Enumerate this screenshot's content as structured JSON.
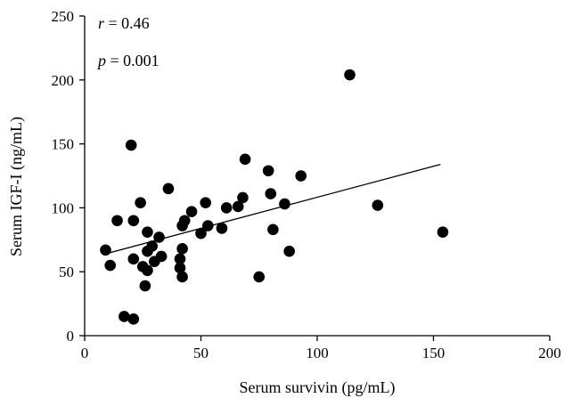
{
  "chart_data": {
    "type": "scatter",
    "xlabel": "Serum survivin (pg/mL)",
    "ylabel": "Serum IGF-I (ng/mL)",
    "xlim": [
      0,
      200
    ],
    "ylim": [
      0,
      250
    ],
    "x_ticks": [
      0,
      50,
      100,
      150,
      200
    ],
    "y_ticks": [
      0,
      50,
      100,
      150,
      200,
      250
    ],
    "grid": false,
    "legend": "none",
    "annotations": [
      {
        "var": "r",
        "text": " = 0.46"
      },
      {
        "var": "p",
        "text": " = 0.001"
      }
    ],
    "series": [
      {
        "points": [
          {
            "x": 9,
            "y": 67
          },
          {
            "x": 11,
            "y": 55
          },
          {
            "x": 14,
            "y": 90
          },
          {
            "x": 17,
            "y": 15
          },
          {
            "x": 20,
            "y": 149
          },
          {
            "x": 21,
            "y": 90
          },
          {
            "x": 21,
            "y": 13
          },
          {
            "x": 21,
            "y": 60
          },
          {
            "x": 24,
            "y": 104
          },
          {
            "x": 25,
            "y": 54
          },
          {
            "x": 26,
            "y": 39
          },
          {
            "x": 27,
            "y": 51
          },
          {
            "x": 27,
            "y": 81
          },
          {
            "x": 27,
            "y": 66
          },
          {
            "x": 29,
            "y": 70
          },
          {
            "x": 30,
            "y": 58
          },
          {
            "x": 32,
            "y": 77
          },
          {
            "x": 33,
            "y": 62
          },
          {
            "x": 36,
            "y": 115
          },
          {
            "x": 41,
            "y": 53
          },
          {
            "x": 41,
            "y": 60
          },
          {
            "x": 42,
            "y": 68
          },
          {
            "x": 42,
            "y": 86
          },
          {
            "x": 42,
            "y": 46
          },
          {
            "x": 43,
            "y": 90
          },
          {
            "x": 46,
            "y": 97
          },
          {
            "x": 50,
            "y": 80
          },
          {
            "x": 52,
            "y": 104
          },
          {
            "x": 53,
            "y": 86
          },
          {
            "x": 59,
            "y": 84
          },
          {
            "x": 61,
            "y": 100
          },
          {
            "x": 66,
            "y": 101
          },
          {
            "x": 68,
            "y": 108
          },
          {
            "x": 69,
            "y": 138
          },
          {
            "x": 75,
            "y": 46
          },
          {
            "x": 79,
            "y": 129
          },
          {
            "x": 80,
            "y": 111
          },
          {
            "x": 81,
            "y": 83
          },
          {
            "x": 86,
            "y": 103
          },
          {
            "x": 88,
            "y": 66
          },
          {
            "x": 93,
            "y": 125
          },
          {
            "x": 114,
            "y": 204
          },
          {
            "x": 126,
            "y": 102
          },
          {
            "x": 154,
            "y": 81
          }
        ]
      }
    ],
    "fit_line": {
      "x": [
        9,
        153
      ],
      "y": [
        64,
        134
      ]
    }
  }
}
